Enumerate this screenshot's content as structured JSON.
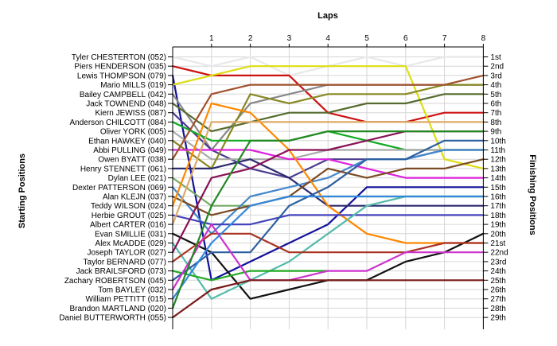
{
  "chart_data": {
    "type": "line",
    "title": "",
    "xlabel": "Laps",
    "ylabel_left": "Starting Positions",
    "ylabel_right": "Finishing Positions",
    "x_ticks": [
      "1",
      "2",
      "3",
      "4",
      "5",
      "6",
      "7",
      "8"
    ],
    "positions": [
      "1st",
      "2nd",
      "3rd",
      "4th",
      "5th",
      "6th",
      "7th",
      "8th",
      "9th",
      "10th",
      "11th",
      "12th",
      "13th",
      "14th",
      "15th",
      "16th",
      "17th",
      "18th",
      "19th",
      "20th",
      "21st",
      "22nd",
      "23rd",
      "24th",
      "25th",
      "26th",
      "27th",
      "28th",
      "29th"
    ],
    "grid": true,
    "series": [
      {
        "name": "Tyler CHESTERTON (052)",
        "color": "#e8e8e8",
        "values": [
          1,
          2,
          1,
          3,
          2,
          1,
          2,
          1,
          1
        ]
      },
      {
        "name": "Piers HENDERSON (035)",
        "color": "#cc1111",
        "values": [
          2,
          3,
          3,
          3,
          7,
          8,
          8,
          7,
          7
        ]
      },
      {
        "name": "Lewis THOMPSON (079)",
        "color": "#12129a",
        "values": [
          3,
          25,
          23,
          21,
          19,
          15,
          15,
          15,
          15
        ]
      },
      {
        "name": "Mario MILLS (019)",
        "color": "#dddd11",
        "values": [
          4,
          3,
          2,
          2,
          2,
          2,
          2,
          12,
          13
        ]
      },
      {
        "name": "Bailey CAMPBELL (042)",
        "color": "#888888",
        "values": [
          5,
          11,
          6,
          5,
          4,
          4,
          4,
          4,
          4
        ]
      },
      {
        "name": "Jack TOWNEND (048)",
        "color": "#556b2f",
        "values": [
          6,
          9,
          8,
          7,
          7,
          6,
          6,
          5,
          5
        ]
      },
      {
        "name": "Kiern JEWISS (087)",
        "color": "#4a3b8f",
        "values": [
          7,
          11,
          13,
          14,
          12,
          12,
          12,
          11,
          11
        ]
      },
      {
        "name": "Anderson CHILCOTT (084)",
        "color": "#11aa22",
        "values": [
          8,
          10,
          10,
          10,
          9,
          10,
          11,
          11,
          11
        ]
      },
      {
        "name": "Oliver YORK (005)",
        "color": "#aaaaaa",
        "values": [
          9,
          12,
          12,
          12,
          11,
          11,
          11,
          11,
          11
        ]
      },
      {
        "name": "Ethan HAWKEY (040)",
        "color": "#888822",
        "values": [
          10,
          13,
          5,
          6,
          5,
          5,
          5,
          4,
          4
        ]
      },
      {
        "name": "Abbi PULLING (049)",
        "color": "#dd22dd",
        "values": [
          11,
          11,
          11,
          12,
          12,
          13,
          14,
          14,
          14
        ]
      },
      {
        "name": "Owen BYATT (038)",
        "color": "#a0522d",
        "values": [
          12,
          5,
          4,
          4,
          4,
          4,
          4,
          4,
          3
        ]
      },
      {
        "name": "Henry STENNETT (061)",
        "color": "#2a2a6e",
        "values": [
          13,
          13,
          12,
          14,
          17,
          17,
          17,
          17,
          17
        ]
      },
      {
        "name": "Dylan LEE (021)",
        "color": "#77aa66",
        "values": [
          14,
          17,
          17,
          16,
          16,
          16,
          16,
          16,
          16
        ]
      },
      {
        "name": "Dexter PATTERSON (069)",
        "color": "#4488cc",
        "values": [
          15,
          20,
          16,
          15,
          14,
          12,
          12,
          11,
          11
        ]
      },
      {
        "name": "Alan KLEJN (037)",
        "color": "#7a4a22",
        "values": [
          16,
          18,
          17,
          16,
          13,
          14,
          13,
          13,
          12
        ]
      },
      {
        "name": "Teddy WILSON (024)",
        "color": "#ff8800",
        "values": [
          17,
          6,
          7,
          11,
          17,
          20,
          21,
          21,
          21
        ]
      },
      {
        "name": "Herbie GROUT (025)",
        "color": "#4444bb",
        "values": [
          18,
          19,
          19,
          18,
          18,
          18,
          18,
          18,
          18
        ]
      },
      {
        "name": "Albert CARTER (016)",
        "color": "#ddaa66",
        "values": [
          19,
          8,
          8,
          8,
          8,
          8,
          8,
          8,
          8
        ]
      },
      {
        "name": "Evan SMILLIE (031)",
        "color": "#111111",
        "values": [
          20,
          22,
          27,
          26,
          25,
          25,
          23,
          22,
          20
        ]
      },
      {
        "name": "Alex McADDE (029)",
        "color": "#55bbaa",
        "values": [
          21,
          27,
          25,
          23,
          20,
          17,
          16,
          16,
          16
        ]
      },
      {
        "name": "Joseph TAYLOR (027)",
        "color": "#881155",
        "values": [
          22,
          14,
          13,
          11,
          11,
          10,
          9,
          9,
          9
        ]
      },
      {
        "name": "Taylor BERNARD (077)",
        "color": "#aa3322",
        "values": [
          23,
          20,
          20,
          22,
          22,
          22,
          22,
          21,
          21
        ]
      },
      {
        "name": "Jack BRAILSFORD (073)",
        "color": "#22aa22",
        "values": [
          24,
          25,
          24,
          24,
          24,
          null,
          null,
          null,
          null
        ]
      },
      {
        "name": "Zachary ROBERTSON (045)",
        "color": "#2d5fa0",
        "values": [
          25,
          22,
          22,
          17,
          15,
          12,
          12,
          10,
          10
        ]
      },
      {
        "name": "Tom BAYLEY (032)",
        "color": "#cc33cc",
        "values": [
          26,
          19,
          25,
          25,
          24,
          24,
          22,
          22,
          22
        ]
      },
      {
        "name": "William PETTITT (015)",
        "color": "#3388dd",
        "values": [
          27,
          21,
          17,
          16,
          16,
          16,
          16,
          16,
          16
        ]
      },
      {
        "name": "Brandon MARTLAND (020)",
        "color": "#228822",
        "values": [
          28,
          17,
          10,
          10,
          9,
          9,
          9,
          9,
          9
        ]
      },
      {
        "name": "Daniel BUTTERWORTH (055)",
        "color": "#7a1a1a",
        "values": [
          29,
          26,
          25,
          25,
          25,
          25,
          25,
          25,
          25
        ]
      }
    ]
  }
}
